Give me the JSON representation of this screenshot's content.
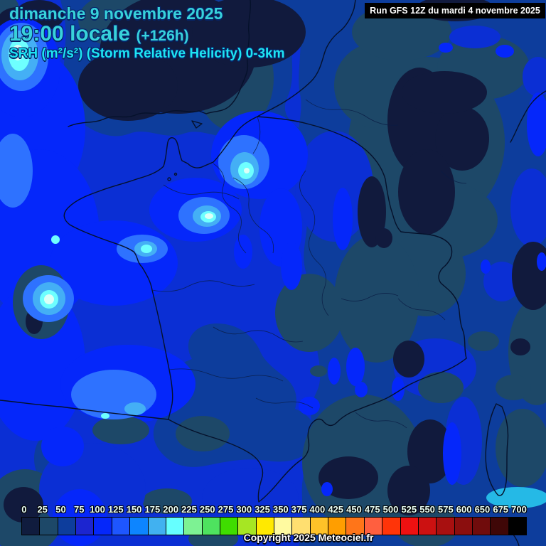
{
  "header": {
    "date": "dimanche 9 novembre 2025",
    "time": "19:00 locale",
    "offset": "(+126h)",
    "parameter": "SRH (m²/s²) (Storm Relative Helicity) 0-3km",
    "run": "Run GFS 12Z du mardi 4 novembre 2025"
  },
  "footer": {
    "copyright": "Copyright 2025 Meteociel.fr"
  },
  "legend": {
    "labels": [
      "0",
      "25",
      "50",
      "75",
      "100",
      "125",
      "150",
      "175",
      "200",
      "225",
      "250",
      "275",
      "300",
      "325",
      "350",
      "375",
      "400",
      "425",
      "450",
      "475",
      "500",
      "525",
      "550",
      "575",
      "600",
      "650",
      "675",
      "700"
    ],
    "colors": [
      "#101c3e",
      "#1d4868",
      "#0d3d9c",
      "#1c25d0",
      "#0527fa",
      "#1e56ff",
      "#0d85ff",
      "#41b1f0",
      "#66ffff",
      "#7df293",
      "#4ee25f",
      "#3fdd00",
      "#a6e623",
      "#ffe900",
      "#fffaa0",
      "#ffdf70",
      "#ffc228",
      "#ff9e00",
      "#ff7519",
      "#ff5f3f",
      "#ff3408",
      "#ee1111",
      "#cc1111",
      "#a81010",
      "#8b0e0e",
      "#700c0c",
      "#3f0707",
      "#000000"
    ]
  },
  "colors": {
    "header_text": "#38d2da",
    "parameter_text": "#1ee4f2",
    "run_bg": "#000000",
    "run_text": "#ffffff",
    "copyright_text": "#ffffff",
    "map_base_blue": "#0b2fd4",
    "map_navy": "#0d3d9c",
    "map_steel": "#1d4868",
    "map_dark_navy": "#111a3d",
    "map_bright_blue": "#0527fa",
    "map_sky": "#44aff5",
    "map_cyan": "#6effff"
  }
}
